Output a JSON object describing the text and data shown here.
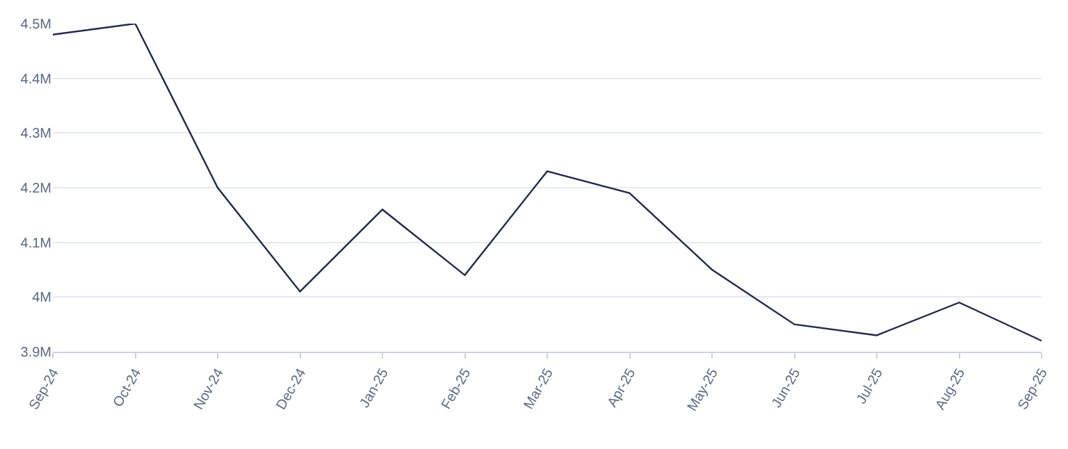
{
  "chart_data": {
    "type": "line",
    "categories": [
      "Sep-24",
      "Oct-24",
      "Nov-24",
      "Dec-24",
      "Jan-25",
      "Feb-25",
      "Mar-25",
      "Apr-25",
      "May-25",
      "Jun-25",
      "Jul-25",
      "Aug-25",
      "Sep-25"
    ],
    "series": [
      {
        "color": "#1f2a4a",
        "values": [
          4480000,
          4500000,
          4200000,
          4010000,
          4160000,
          4040000,
          4230000,
          4190000,
          4050000,
          3950000,
          3930000,
          3990000,
          3920000
        ]
      }
    ],
    "ylim": [
      3900000,
      4500000
    ],
    "yticks": [
      {
        "value": 3900000,
        "label": "3.9M"
      },
      {
        "value": 4000000,
        "label": "4M"
      },
      {
        "value": 4100000,
        "label": "4.1M"
      },
      {
        "value": 4200000,
        "label": "4.2M"
      },
      {
        "value": 4300000,
        "label": "4.3M"
      },
      {
        "value": 4400000,
        "label": "4.4M"
      },
      {
        "value": 4500000,
        "label": "4.5M"
      }
    ],
    "grid": "y",
    "legend": false,
    "marker": "none",
    "line_style": "solid"
  }
}
